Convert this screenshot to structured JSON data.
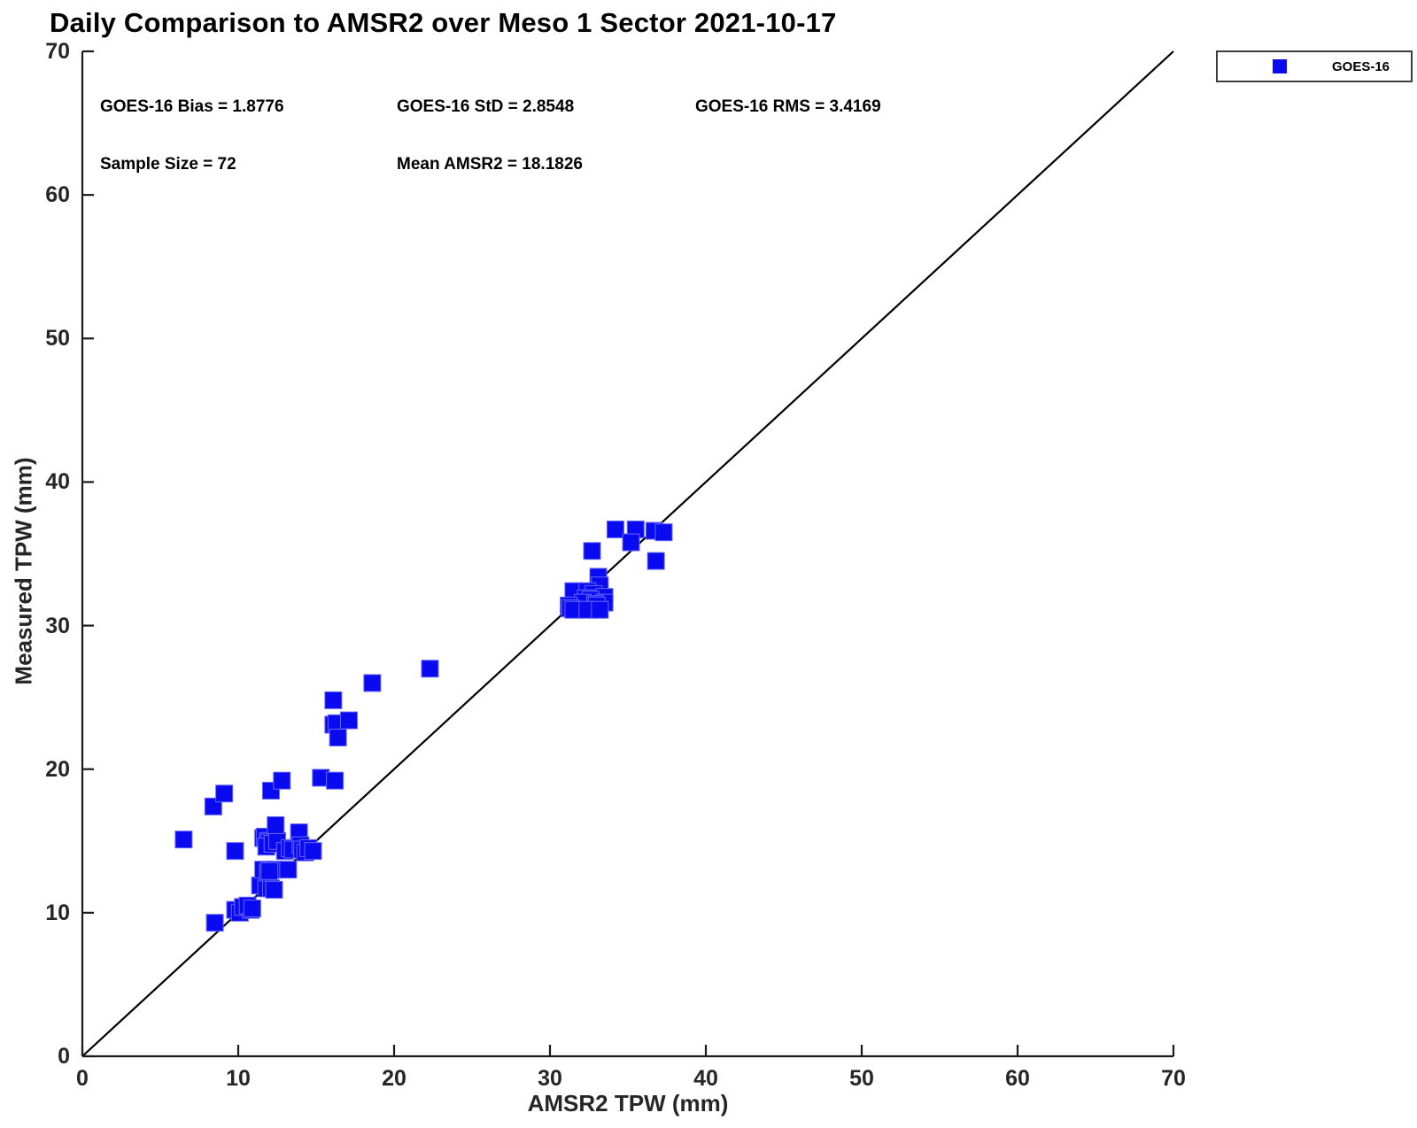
{
  "title": "Daily Comparison to AMSR2 over Meso 1 Sector 2021-10-17",
  "stats": {
    "bias_label": "GOES-16 Bias = 1.8776",
    "std_label": "GOES-16 StD = 2.8548",
    "rms_label": "GOES-16 RMS = 3.4169",
    "sample_label": "Sample Size = 72",
    "mean_label": "Mean AMSR2 = 18.1826",
    "values": {
      "bias": 1.8776,
      "std": 2.8548,
      "rms": 3.4169,
      "sample_size": 72,
      "mean_amsr2": 18.1826
    }
  },
  "legend": {
    "position": "outside-top-right",
    "items": [
      {
        "label": "GOES-16",
        "marker": "filled-square",
        "color": "#0a0af0"
      }
    ]
  },
  "colors": {
    "marker": "#0a0af0",
    "marker_edge": "#6666ff",
    "axis": "#1a1a1a",
    "tick_label": "#262626",
    "reference_line": "#000000"
  },
  "chart_data": {
    "type": "scatter",
    "title": "Daily Comparison to AMSR2 over Meso 1 Sector 2021-10-17",
    "xlabel": "AMSR2 TPW (mm)",
    "ylabel": "Measured TPW (mm)",
    "xlim": [
      0,
      70
    ],
    "ylim": [
      0,
      70
    ],
    "xticks": [
      0,
      10,
      20,
      30,
      40,
      50,
      60,
      70
    ],
    "yticks": [
      0,
      10,
      20,
      30,
      40,
      50,
      60,
      70
    ],
    "grid": false,
    "legend_position": "outside-top-right",
    "reference_line": {
      "type": "identity",
      "from": [
        0,
        0
      ],
      "to": [
        70,
        70
      ],
      "color": "#000000"
    },
    "series": [
      {
        "name": "GOES-16",
        "marker": "square",
        "color": "#0a0af0",
        "points": [
          [
            6.5,
            15.1
          ],
          [
            8.4,
            17.4
          ],
          [
            8.5,
            9.3
          ],
          [
            9.1,
            18.3
          ],
          [
            9.8,
            10.2
          ],
          [
            10.1,
            10.0
          ],
          [
            10.3,
            10.4
          ],
          [
            10.8,
            10.2
          ],
          [
            10.6,
            10.5
          ],
          [
            10.9,
            10.3
          ],
          [
            11.4,
            11.9
          ],
          [
            11.8,
            11.7
          ],
          [
            12.1,
            11.7
          ],
          [
            12.3,
            11.6
          ],
          [
            11.6,
            13.0
          ],
          [
            11.9,
            12.8
          ],
          [
            12.3,
            13.0
          ],
          [
            13.2,
            13.0
          ],
          [
            12.0,
            12.9
          ],
          [
            9.8,
            14.3
          ],
          [
            11.6,
            15.2
          ],
          [
            11.7,
            15.3
          ],
          [
            11.9,
            15.0
          ],
          [
            12.0,
            14.9
          ],
          [
            11.8,
            14.6
          ],
          [
            12.2,
            14.8
          ],
          [
            12.5,
            15.0
          ],
          [
            12.4,
            16.1
          ],
          [
            13.9,
            15.6
          ],
          [
            13.0,
            14.3
          ],
          [
            13.3,
            14.5
          ],
          [
            13.5,
            14.4
          ],
          [
            14.0,
            14.7
          ],
          [
            14.1,
            14.4
          ],
          [
            14.3,
            14.2
          ],
          [
            14.5,
            14.5
          ],
          [
            14.8,
            14.3
          ],
          [
            12.1,
            18.5
          ],
          [
            12.8,
            19.2
          ],
          [
            15.3,
            19.4
          ],
          [
            16.2,
            19.2
          ],
          [
            16.1,
            24.8
          ],
          [
            16.1,
            23.1
          ],
          [
            16.3,
            23.2
          ],
          [
            16.4,
            22.2
          ],
          [
            17.1,
            23.4
          ],
          [
            18.6,
            26.0
          ],
          [
            22.3,
            27.0
          ],
          [
            34.2,
            36.7
          ],
          [
            35.5,
            36.7
          ],
          [
            36.7,
            36.6
          ],
          [
            37.3,
            36.5
          ],
          [
            35.2,
            35.8
          ],
          [
            32.7,
            35.2
          ],
          [
            36.8,
            34.5
          ],
          [
            33.1,
            33.4
          ],
          [
            33.2,
            32.8
          ],
          [
            31.5,
            32.4
          ],
          [
            32.4,
            32.4
          ],
          [
            32.8,
            32.2
          ],
          [
            33.5,
            32.0
          ],
          [
            32.3,
            31.9
          ],
          [
            32.6,
            31.8
          ],
          [
            32.1,
            31.6
          ],
          [
            33.5,
            31.6
          ],
          [
            32.9,
            31.5
          ],
          [
            33.0,
            31.4
          ],
          [
            31.2,
            31.4
          ],
          [
            31.3,
            31.2
          ],
          [
            31.5,
            31.1
          ],
          [
            32.4,
            31.1
          ],
          [
            33.2,
            31.1
          ]
        ]
      }
    ]
  }
}
